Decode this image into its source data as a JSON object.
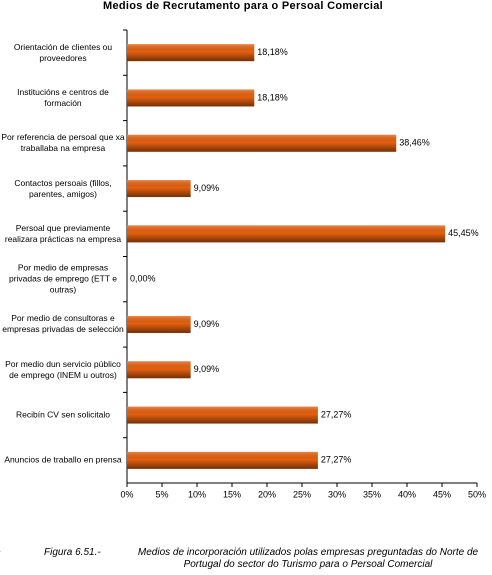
{
  "chart_data": {
    "type": "bar",
    "orientation": "horizontal",
    "title": "Medios de Recrutamento para o Persoal Comercial",
    "categories": [
      "Orientación de clientes ou proveedores",
      "Institucións e centros de formación",
      "Por referencia de persoal que xa traballaba na empresa",
      "Contactos persoais (fillos, parentes, amigos)",
      "Persoal que previamente realizara prácticas na empresa",
      "Por medio de empresas privadas de emprego (ETT e outras)",
      "Por medio  de consultoras e empresas privadas de selección",
      "Por medio dun servicio público de emprego (INEM u outros)",
      "Recibín CV sen solicitalo",
      "Anuncios de traballo en prensa"
    ],
    "values": [
      18.18,
      18.18,
      38.46,
      9.09,
      45.45,
      0,
      9.09,
      9.09,
      27.27,
      27.27
    ],
    "value_labels": [
      "18,18%",
      "18,18%",
      "38,46%",
      "9,09%",
      "45,45%",
      "0,00%",
      "9,09%",
      "9,09%",
      "27,27%",
      "27,27%"
    ],
    "color": "#e4600f",
    "xlim": [
      0,
      50
    ],
    "xticks": [
      {
        "value": 0,
        "label": "0%"
      },
      {
        "value": 5,
        "label": "5%"
      },
      {
        "value": 10,
        "label": "10%"
      },
      {
        "value": 15,
        "label": "15%"
      },
      {
        "value": 20,
        "label": "20%"
      },
      {
        "value": 25,
        "label": "25%"
      },
      {
        "value": 30,
        "label": "30%"
      },
      {
        "value": 35,
        "label": "35%"
      },
      {
        "value": 40,
        "label": "40%"
      },
      {
        "value": 45,
        "label": "45%"
      },
      {
        "value": 50,
        "label": "50%"
      }
    ],
    "grid": false
  },
  "caption": {
    "fragment": "e",
    "label": "Figura 6.51.-",
    "text": "Medios de incorporación utilizados polas empresas preguntadas do Norte de Portugal do sector do Turismo para o Persoal Comercial"
  }
}
